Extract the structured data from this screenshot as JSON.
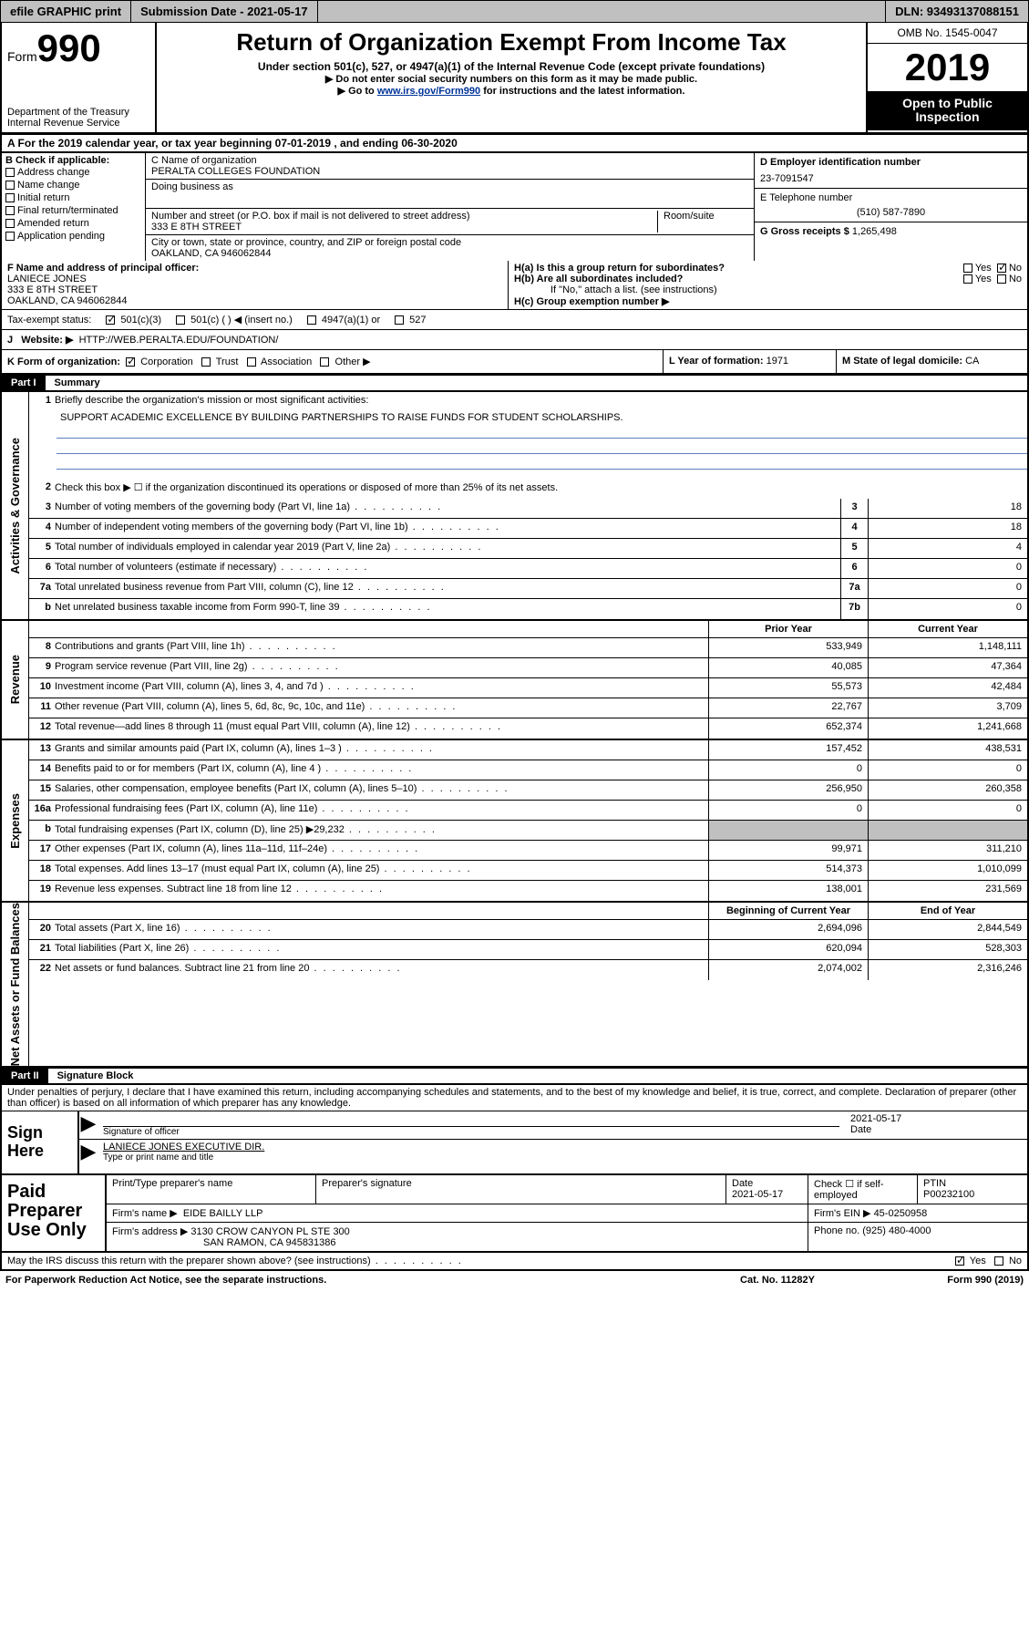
{
  "meta": {
    "dln": "DLN: 93493137088151",
    "submission_date_label": "Submission Date - 2021-05-17",
    "efile_label": "efile GRAPHIC print",
    "omb": "OMB No. 1545-0047",
    "tax_year": "2019",
    "open_to_public": "Open to Public Inspection",
    "form_label": "Form",
    "form_number": "990",
    "dept": "Department of the Treasury",
    "irs": "Internal Revenue Service",
    "title": "Return of Organization Exempt From Income Tax",
    "subtitle": "Under section 501(c), 527, or 4947(a)(1) of the Internal Revenue Code (except private foundations)",
    "note1": "▶ Do not enter social security numbers on this form as it may be made public.",
    "note2_pre": "▶ Go to ",
    "note2_link": "www.irs.gov/Form990",
    "note2_post": " for instructions and the latest information."
  },
  "period": {
    "line": "A For the 2019 calendar year, or tax year beginning 07-01-2019    , and ending 06-30-2020"
  },
  "sectionB": {
    "header": "B Check if applicable:",
    "items": [
      "Address change",
      "Name change",
      "Initial return",
      "Final return/terminated",
      "Amended return",
      "Application pending"
    ]
  },
  "sectionC": {
    "name_label": "C Name of organization",
    "name": "PERALTA COLLEGES FOUNDATION",
    "dba_label": "Doing business as",
    "addr_label": "Number and street (or P.O. box if mail is not delivered to street address)",
    "room_label": "Room/suite",
    "addr": "333 E 8TH STREET",
    "city_label": "City or town, state or province, country, and ZIP or foreign postal code",
    "city": "OAKLAND, CA  946062844"
  },
  "sectionD": {
    "label": "D Employer identification number",
    "value": "23-7091547"
  },
  "sectionE": {
    "label": "E Telephone number",
    "value": "(510) 587-7890"
  },
  "sectionG": {
    "label": "G Gross receipts $",
    "value": "1,265,498"
  },
  "sectionF": {
    "label": "F  Name and address of principal officer:",
    "name": "LANIECE JONES",
    "addr1": "333 E 8TH STREET",
    "addr2": "OAKLAND, CA  946062844"
  },
  "sectionH": {
    "a": "H(a)  Is this a group return for subordinates?",
    "b": "H(b)  Are all subordinates included?",
    "b_note": "If \"No,\" attach a list. (see instructions)",
    "c": "H(c)  Group exemption number ▶",
    "yes": "Yes",
    "no": "No"
  },
  "taxExempt": {
    "label": "Tax-exempt status:",
    "o1": "501(c)(3)",
    "o2": "501(c) (  ) ◀ (insert no.)",
    "o3": "4947(a)(1) or",
    "o4": "527"
  },
  "sectionJ": {
    "label": "J",
    "text": "Website: ▶",
    "value": "HTTP://WEB.PERALTA.EDU/FOUNDATION/"
  },
  "sectionK": {
    "label": "K Form of organization:",
    "opts": [
      "Corporation",
      "Trust",
      "Association",
      "Other ▶"
    ],
    "l_label": "L Year of formation:",
    "l_val": "1971",
    "m_label": "M State of legal domicile:",
    "m_val": "CA"
  },
  "partI": {
    "hdr": "Part I",
    "title": "Summary",
    "q1": "Briefly describe the organization's mission or most significant activities:",
    "mission": "SUPPORT ACADEMIC EXCELLENCE BY BUILDING PARTNERSHIPS TO RAISE FUNDS FOR STUDENT SCHOLARSHIPS.",
    "q2": "Check this box ▶ ☐  if the organization discontinued its operations or disposed of more than 25% of its net assets.",
    "tab_gov": "Activities & Governance",
    "tab_rev": "Revenue",
    "tab_exp": "Expenses",
    "tab_net": "Net Assets or Fund Balances",
    "lines_gov": [
      {
        "n": "3",
        "t": "Number of voting members of the governing body (Part VI, line 1a)",
        "box": "3",
        "v": "18"
      },
      {
        "n": "4",
        "t": "Number of independent voting members of the governing body (Part VI, line 1b)",
        "box": "4",
        "v": "18"
      },
      {
        "n": "5",
        "t": "Total number of individuals employed in calendar year 2019 (Part V, line 2a)",
        "box": "5",
        "v": "4"
      },
      {
        "n": "6",
        "t": "Total number of volunteers (estimate if necessary)",
        "box": "6",
        "v": "0"
      },
      {
        "n": "7a",
        "t": "Total unrelated business revenue from Part VIII, column (C), line 12",
        "box": "7a",
        "v": "0"
      },
      {
        "n": "b",
        "t": "Net unrelated business taxable income from Form 990-T, line 39",
        "box": "7b",
        "v": "0"
      }
    ],
    "hdr_prior": "Prior Year",
    "hdr_curr": "Current Year",
    "lines_rev": [
      {
        "n": "8",
        "t": "Contributions and grants (Part VIII, line 1h)",
        "p": "533,949",
        "c": "1,148,111"
      },
      {
        "n": "9",
        "t": "Program service revenue (Part VIII, line 2g)",
        "p": "40,085",
        "c": "47,364"
      },
      {
        "n": "10",
        "t": "Investment income (Part VIII, column (A), lines 3, 4, and 7d )",
        "p": "55,573",
        "c": "42,484"
      },
      {
        "n": "11",
        "t": "Other revenue (Part VIII, column (A), lines 5, 6d, 8c, 9c, 10c, and 11e)",
        "p": "22,767",
        "c": "3,709"
      },
      {
        "n": "12",
        "t": "Total revenue—add lines 8 through 11 (must equal Part VIII, column (A), line 12)",
        "p": "652,374",
        "c": "1,241,668"
      }
    ],
    "lines_exp": [
      {
        "n": "13",
        "t": "Grants and similar amounts paid (Part IX, column (A), lines 1–3 )",
        "p": "157,452",
        "c": "438,531"
      },
      {
        "n": "14",
        "t": "Benefits paid to or for members (Part IX, column (A), line 4 )",
        "p": "0",
        "c": "0"
      },
      {
        "n": "15",
        "t": "Salaries, other compensation, employee benefits (Part IX, column (A), lines 5–10)",
        "p": "256,950",
        "c": "260,358"
      },
      {
        "n": "16a",
        "t": "Professional fundraising fees (Part IX, column (A), line 11e)",
        "p": "0",
        "c": "0"
      },
      {
        "n": "b",
        "t": "Total fundraising expenses (Part IX, column (D), line 25) ▶29,232",
        "p": "",
        "c": "",
        "shade": true
      },
      {
        "n": "17",
        "t": "Other expenses (Part IX, column (A), lines 11a–11d, 11f–24e)",
        "p": "99,971",
        "c": "311,210"
      },
      {
        "n": "18",
        "t": "Total expenses. Add lines 13–17 (must equal Part IX, column (A), line 25)",
        "p": "514,373",
        "c": "1,010,099"
      },
      {
        "n": "19",
        "t": "Revenue less expenses. Subtract line 18 from line 12",
        "p": "138,001",
        "c": "231,569"
      }
    ],
    "hdr_begin": "Beginning of Current Year",
    "hdr_end": "End of Year",
    "lines_net": [
      {
        "n": "20",
        "t": "Total assets (Part X, line 16)",
        "p": "2,694,096",
        "c": "2,844,549"
      },
      {
        "n": "21",
        "t": "Total liabilities (Part X, line 26)",
        "p": "620,094",
        "c": "528,303"
      },
      {
        "n": "22",
        "t": "Net assets or fund balances. Subtract line 21 from line 20",
        "p": "2,074,002",
        "c": "2,316,246"
      }
    ]
  },
  "partII": {
    "hdr": "Part II",
    "title": "Signature Block",
    "perjury": "Under penalties of perjury, I declare that I have examined this return, including accompanying schedules and statements, and to the best of my knowledge and belief, it is true, correct, and complete. Declaration of preparer (other than officer) is based on all information of which preparer has any knowledge.",
    "sign_here": "Sign Here",
    "sig_officer": "Signature of officer",
    "sig_date": "2021-05-17",
    "date_label": "Date",
    "typed_name": "LANIECE JONES  EXECUTIVE DIR.",
    "typed_label": "Type or print name and title",
    "paid": "Paid Preparer Use Only",
    "prep_name_label": "Print/Type preparer's name",
    "prep_sig_label": "Preparer's signature",
    "prep_date_label": "Date",
    "prep_date": "2021-05-17",
    "check_if": "Check ☐ if self-employed",
    "ptin_label": "PTIN",
    "ptin": "P00232100",
    "firm_name_label": "Firm's name    ▶",
    "firm_name": "EIDE BAILLY LLP",
    "firm_ein_label": "Firm's EIN ▶",
    "firm_ein": "45-0250958",
    "firm_addr_label": "Firm's address ▶",
    "firm_addr1": "3130 CROW CANYON PL STE 300",
    "firm_addr2": "SAN RAMON, CA  945831386",
    "phone_label": "Phone no.",
    "phone": "(925) 480-4000",
    "discuss": "May the IRS discuss this return with the preparer shown above? (see instructions)",
    "yes": "Yes",
    "no": "No"
  },
  "footer": {
    "pra": "For Paperwork Reduction Act Notice, see the separate instructions.",
    "cat": "Cat. No. 11282Y",
    "form": "Form 990 (2019)"
  },
  "colors": {
    "accent_blue": "#003399",
    "rule_blue": "#6080c0",
    "gray": "#c0c0c0",
    "black": "#000000"
  }
}
